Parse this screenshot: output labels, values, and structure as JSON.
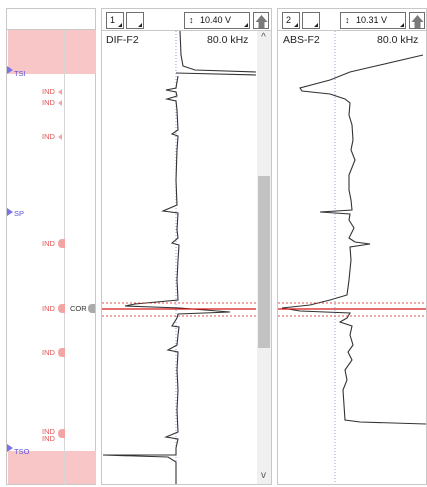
{
  "left_strip": {
    "labels": [
      {
        "id": "tsi",
        "text": "TSI",
        "color": "blue"
      },
      {
        "id": "ind1",
        "text": "IND"
      },
      {
        "id": "ind2",
        "text": "IND"
      },
      {
        "id": "ind3",
        "text": "IND"
      },
      {
        "id": "sp",
        "text": "SP",
        "color": "blue"
      },
      {
        "id": "ind4",
        "text": "IND"
      },
      {
        "id": "ind5",
        "text": "IND"
      },
      {
        "id": "cor",
        "text": "COR"
      },
      {
        "id": "ind6",
        "text": "IND"
      },
      {
        "id": "ind7",
        "text": "IND"
      },
      {
        "id": "ind8",
        "text": "IND"
      },
      {
        "id": "tso",
        "text": "TSO",
        "color": "blue"
      }
    ]
  },
  "panels": [
    {
      "id": "panel1",
      "channel_number": "1",
      "voltage": "10.40 V",
      "channel_name": "DIF-F2",
      "frequency": "80.0 kHz"
    },
    {
      "id": "panel2",
      "channel_number": "2",
      "voltage": "10.31 V",
      "channel_name": "ABS-F2",
      "frequency": "80.0 kHz"
    }
  ],
  "scroll": {
    "up_arrow": "^",
    "down_arrow": "v"
  },
  "colors": {
    "zone_fill": "#f8c6c6",
    "signal_blue": "#5a53d6",
    "indication_red": "#e05555",
    "cursor_red": "#d11a1a",
    "trace": "#333333"
  },
  "icons": {
    "voltage_icon": "vertical-double-arrow-icon",
    "up_button_icon": "up-arrow-icon"
  }
}
